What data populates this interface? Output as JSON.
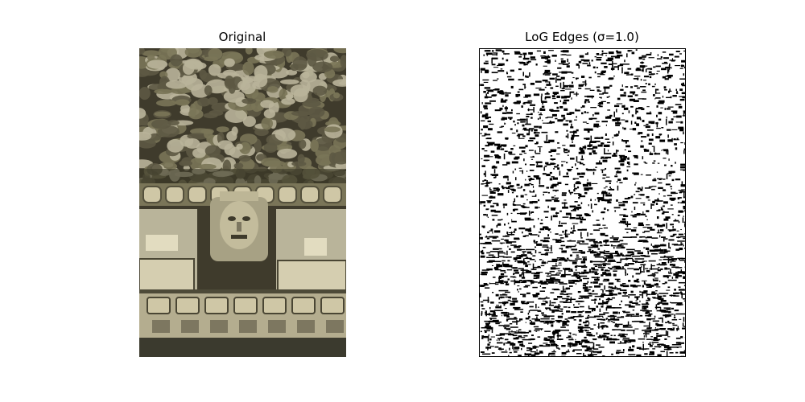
{
  "figure": {
    "panels": [
      {
        "title": "Original",
        "image": "photo of carved stone temple facade with central sculpted face, rubble stonework above and carved blocks below",
        "colors": {
          "stone_dark": "#3f3b2c",
          "stone_mid": "#7a7558",
          "stone_light": "#b9b49a",
          "carving_light": "#cfc7a6"
        }
      },
      {
        "title": "LoG Edges (σ=1.0)",
        "image": "binary edge map, black speckled edges on white background",
        "colors": {
          "background": "#ffffff",
          "edges": "#000000"
        }
      }
    ]
  }
}
